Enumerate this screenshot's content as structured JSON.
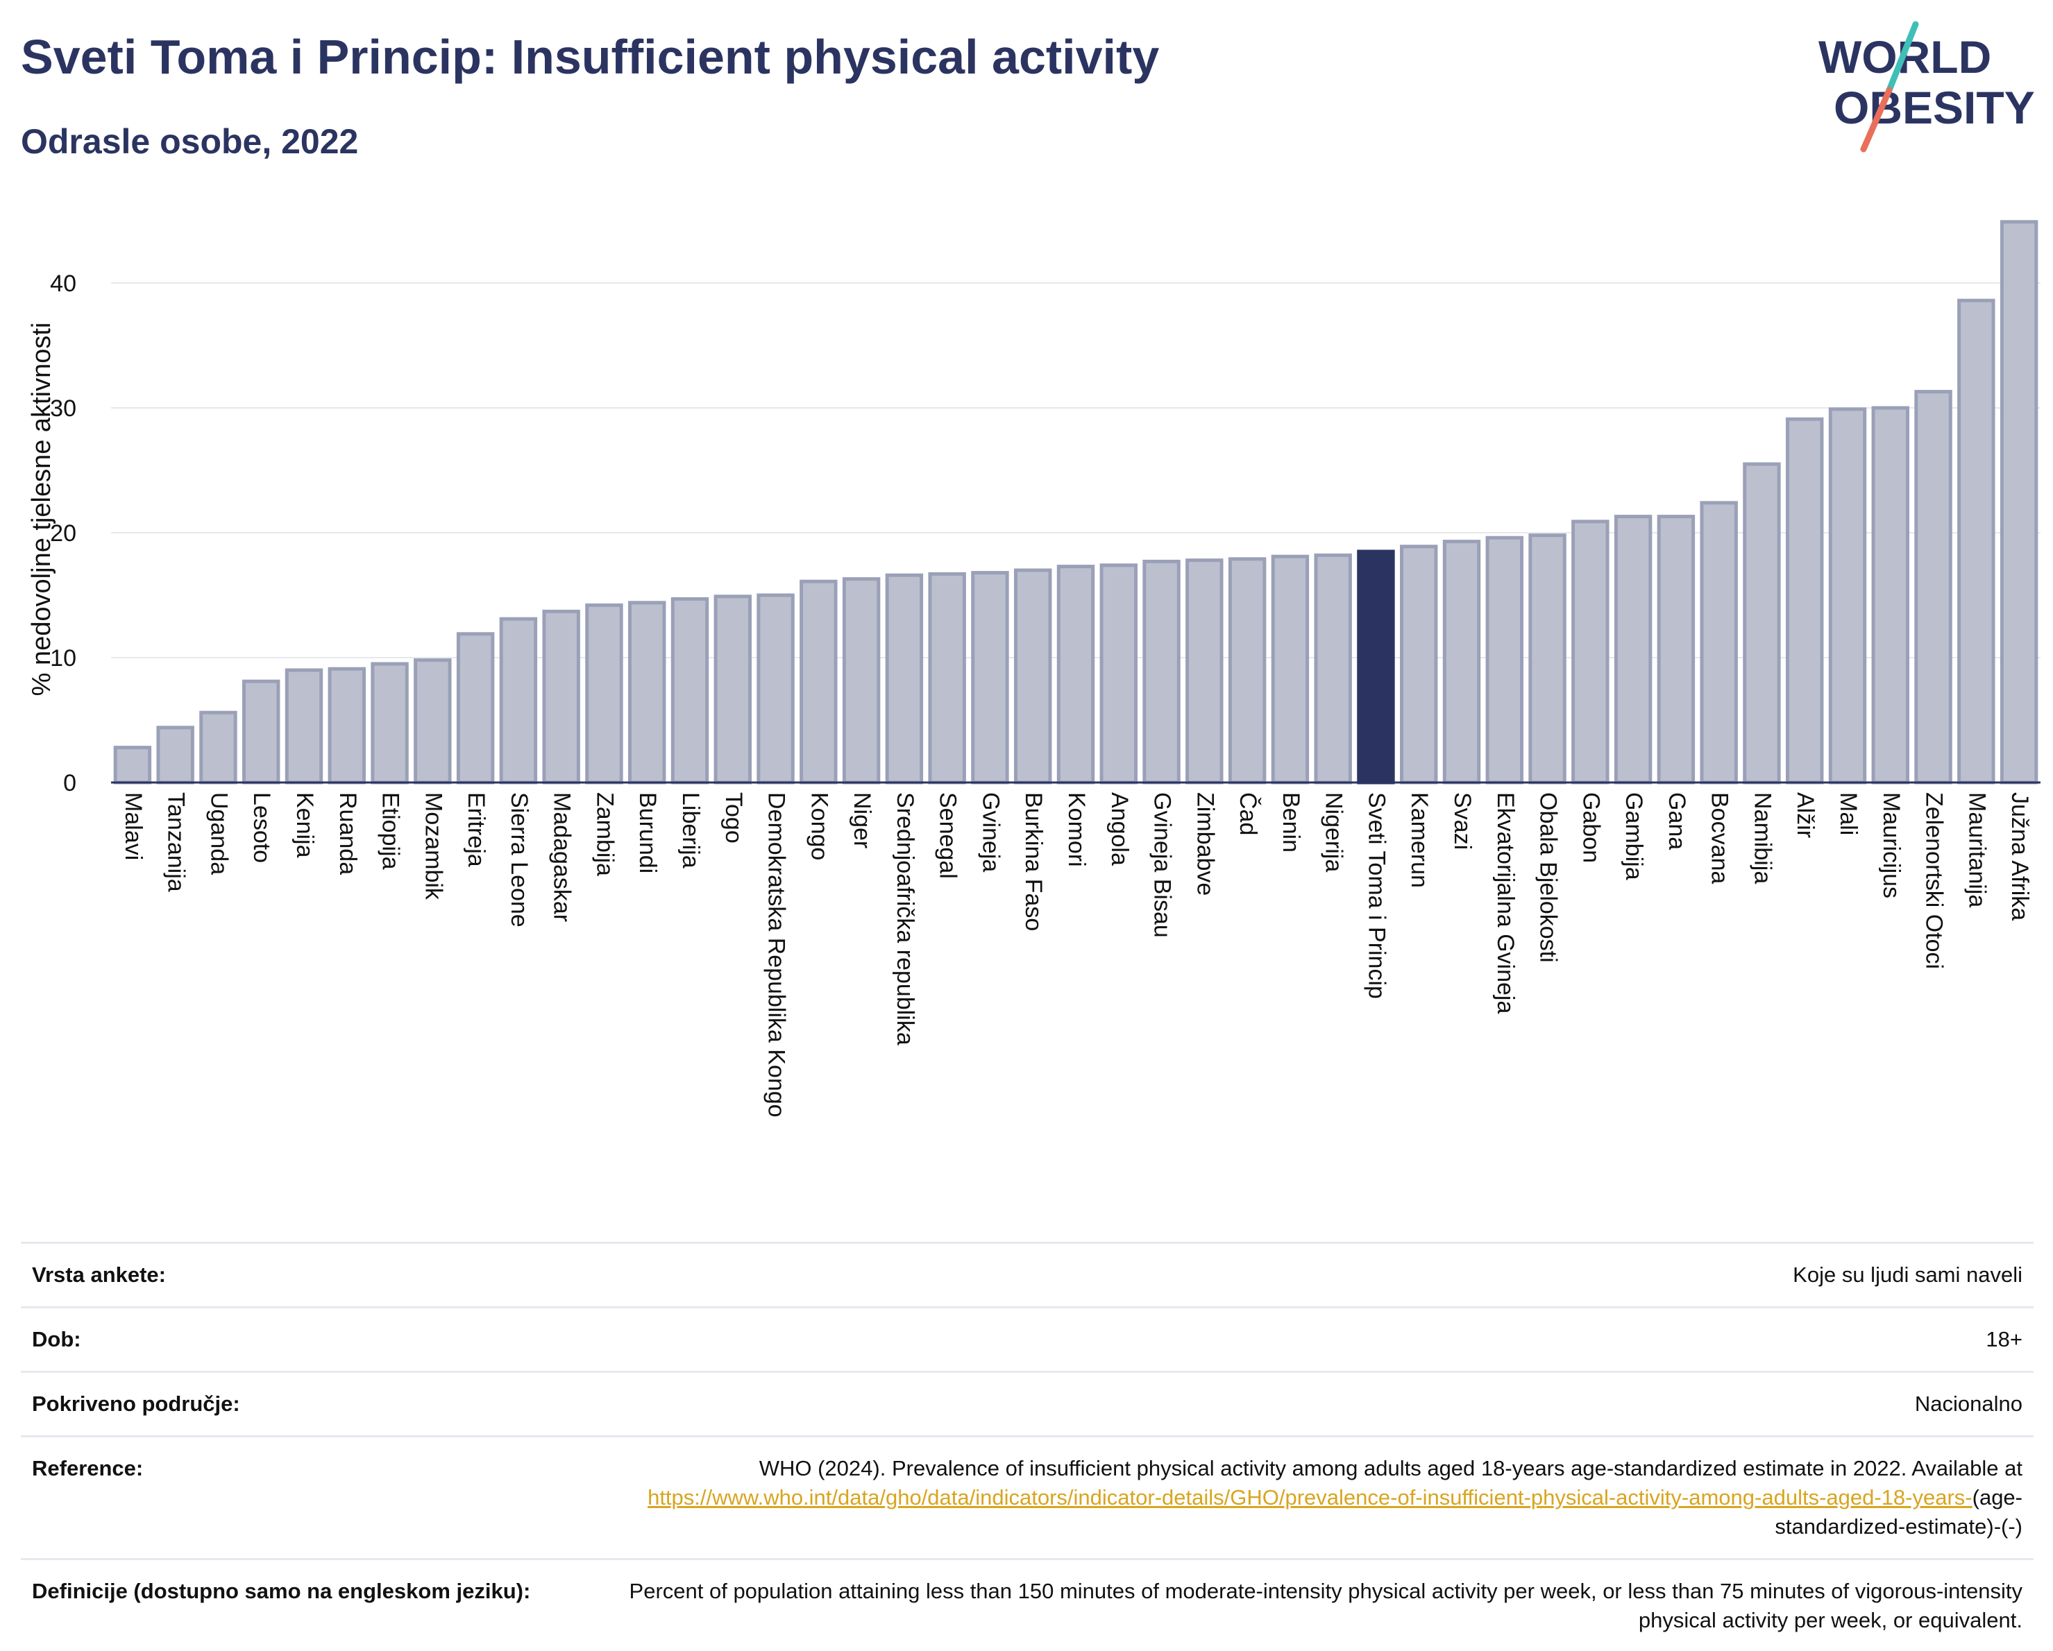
{
  "header": {
    "title": "Sveti Toma i Princip: Insufficient physical activity",
    "subtitle": "Odrasle osobe, 2022",
    "logo_line1": "WORLD",
    "logo_line2": "OBESITY"
  },
  "colors": {
    "title": "#2b3461",
    "bar": "#bcc0ce",
    "bar_edge": "#9aa0b7",
    "highlight": "#2b3461",
    "link": "#d8a520",
    "logo_teal": "#3fbfb7",
    "logo_coral": "#e8705a"
  },
  "chart_data": {
    "type": "bar",
    "ylabel": "% nedovoljne tjelesne aktivnosti",
    "ylim": [
      0,
      46
    ],
    "yticks": [
      0,
      10,
      20,
      30,
      40
    ],
    "grid": true,
    "highlight": "Sveti Toma i Princip",
    "categories": [
      "Malavi",
      "Tanzanija",
      "Uganda",
      "Lesoto",
      "Kenija",
      "Ruanda",
      "Etiopija",
      "Mozambik",
      "Eritreja",
      "Sierra Leone",
      "Madagaskar",
      "Zambija",
      "Burundi",
      "Liberija",
      "Togo",
      "Demokratska Republika Kongo",
      "Kongo",
      "Niger",
      "Srednjoafrička republika",
      "Senegal",
      "Gvineja",
      "Burkina Faso",
      "Komori",
      "Angola",
      "Gvineja Bisau",
      "Zimbabve",
      "Čad",
      "Benin",
      "Nigerija",
      "Sveti Toma i Princip",
      "Kamerun",
      "Svazi",
      "Ekvatorijalna Gvineja",
      "Obala Bjelokosti",
      "Gabon",
      "Gambija",
      "Gana",
      "Bocvana",
      "Namibija",
      "Alžir",
      "Mali",
      "Mauricijus",
      "Zelenortski Otoci",
      "Mauritanija",
      "Južna Afrika"
    ],
    "values": [
      2.8,
      4.4,
      5.6,
      8.1,
      9.0,
      9.1,
      9.5,
      9.8,
      11.9,
      13.1,
      13.7,
      14.2,
      14.4,
      14.7,
      14.9,
      15.0,
      16.1,
      16.3,
      16.6,
      16.7,
      16.8,
      17.0,
      17.3,
      17.4,
      17.7,
      17.8,
      17.9,
      18.1,
      18.2,
      18.5,
      18.9,
      19.3,
      19.6,
      19.8,
      20.9,
      21.3,
      21.3,
      22.4,
      25.5,
      29.1,
      29.9,
      30.0,
      31.3,
      38.6,
      44.9
    ]
  },
  "info": {
    "rows": [
      {
        "label": "Vrsta ankete:",
        "value": "Koje su ljudi sami naveli"
      },
      {
        "label": "Dob:",
        "value": "18+"
      },
      {
        "label": "Pokriveno područje:",
        "value": "Nacionalno"
      }
    ],
    "reference": {
      "label": "Reference:",
      "text": "WHO (2024). Prevalence of insufficient physical activity among adults aged 18-years age-standardized estimate in 2022. Available at",
      "link": "https://www.who.int/data/gho/data/indicators/indicator-details/GHO/prevalence-of-insufficient-physical-activity-among-adults-aged-18-years-",
      "suffix": "(age-standardized-estimate)-(-)"
    },
    "definition": {
      "label": "Definicije (dostupno samo na engleskom jeziku):",
      "value": "Percent of population attaining less than 150 minutes of moderate-intensity physical activity per week, or less than 75 minutes of vigorous-intensity physical activity per week, or equivalent."
    }
  }
}
